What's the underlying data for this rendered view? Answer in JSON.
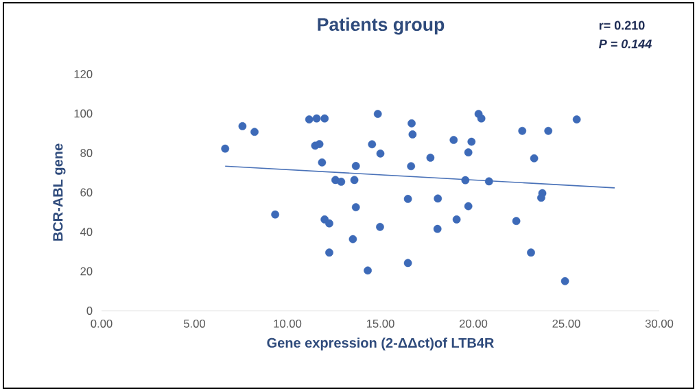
{
  "chart_data": {
    "type": "scatter",
    "title": "Patients group",
    "xlabel": "Gene expression (2-ΔΔct)of LTB4R",
    "ylabel": "BCR-ABL gene",
    "annotations": [
      "r= 0.210",
      "P = 0.144"
    ],
    "xlim": [
      0,
      30
    ],
    "ylim": [
      0,
      120
    ],
    "xticks": [
      {
        "value": 0,
        "label": "0.00"
      },
      {
        "value": 5,
        "label": "5.00"
      },
      {
        "value": 10,
        "label": "10.00"
      },
      {
        "value": 15,
        "label": "15.00"
      },
      {
        "value": 20,
        "label": "20.00"
      },
      {
        "value": 25,
        "label": "25.00"
      },
      {
        "value": 30,
        "label": "30.00"
      }
    ],
    "yticks": [
      0,
      20,
      40,
      60,
      80,
      100,
      120
    ],
    "series": [
      {
        "color": "#3d6ab8",
        "marker": "circle",
        "x": [
          6.65,
          7.58,
          8.23,
          9.34,
          11.17,
          11.57,
          12.0,
          11.49,
          11.72,
          11.86,
          12.0,
          12.25,
          12.25,
          12.58,
          12.89,
          13.52,
          13.68,
          13.6,
          13.68,
          14.32,
          14.55,
          14.86,
          15.0,
          14.98,
          16.68,
          16.73,
          16.65,
          16.48,
          16.48,
          17.69,
          18.09,
          18.07,
          18.94,
          19.1,
          19.9,
          19.73,
          19.57,
          19.73,
          20.28,
          20.43,
          20.84,
          22.31,
          22.63,
          23.1,
          23.27,
          23.71,
          23.65,
          24.03,
          24.93,
          25.56
        ],
        "values": [
          82.2,
          93.6,
          90.7,
          48.8,
          97,
          97.5,
          97.5,
          83.7,
          84.5,
          75.2,
          46.3,
          44.3,
          29.5,
          66.3,
          65.4,
          36.3,
          73.4,
          66.3,
          52.5,
          20.4,
          84.4,
          99.8,
          79.7,
          42.5,
          95,
          89.4,
          73.3,
          56.7,
          24.2,
          77.6,
          56.9,
          41.5,
          86.6,
          46.3,
          85.7,
          80.3,
          66.2,
          53,
          99.8,
          97.5,
          65.6,
          45.5,
          91.2,
          29.5,
          77.3,
          59.6,
          57.3,
          91.2,
          15,
          97
        ]
      },
      {
        "type": "line",
        "color": "#4a72b8",
        "marker": "none",
        "line_style": "solid",
        "x": [
          6.65,
          27.6
        ],
        "values": [
          73.3,
          62.3
        ]
      }
    ]
  }
}
